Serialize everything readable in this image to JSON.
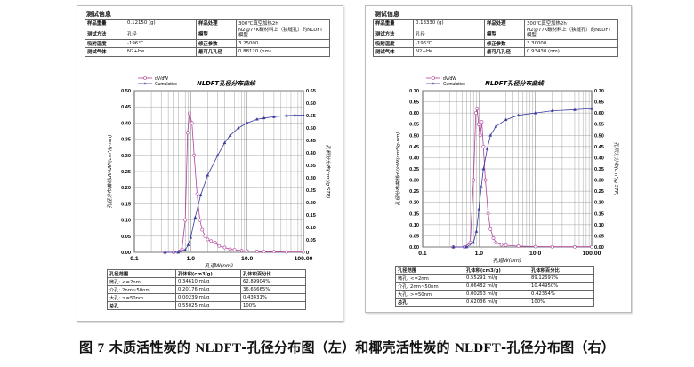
{
  "panels": [
    {
      "header": "测试信息",
      "info": [
        [
          "样品重量",
          "0.12150 (g)",
          "样品处理",
          "300℃真空加热2h"
        ],
        [
          "测试方法",
          "孔径",
          "模型",
          "N2@77K碳材料上（狭缝孔）的NLDFT模型"
        ],
        [
          "吸附温度",
          "-196℃",
          "修正参数",
          "3.25000"
        ],
        [
          "测试气体",
          "N2+He",
          "最可几孔径",
          "0.88120 (nm)"
        ]
      ],
      "pore_table": {
        "headers": [
          "孔径范围",
          "孔体积(cm3/g)",
          "孔体积百分比"
        ],
        "rows": [
          [
            "微孔: <=2nm",
            "0.34610 ml/g",
            "62.89904%"
          ],
          [
            "介孔: 2nm~50nm",
            "0.20176 ml/g",
            "36.66665%"
          ],
          [
            "大孔: >=50nm",
            "0.00239 ml/g",
            "0.43431%"
          ],
          [
            "总孔",
            "0.55025 ml/g",
            "100%"
          ]
        ]
      },
      "chart_data": {
        "type": "line",
        "title": "NLDFT孔径分布曲线",
        "xlabel": "孔道W(nm)",
        "ylabel": "孔径分布曲线dV/dW(cm³/g·nm)",
        "y2label": "孔积分分布(cm³/g STP)",
        "xscale": "log",
        "xlim": [
          0.1,
          100
        ],
        "xticks": [
          "0.1",
          "1.0",
          "10.0",
          "100.00"
        ],
        "ylim": [
          0,
          0.5
        ],
        "yticks": [
          "0.00",
          "0.05",
          "0.10",
          "0.15",
          "0.20",
          "0.25",
          "0.30",
          "0.35",
          "0.40",
          "0.45",
          "0.50"
        ],
        "y2lim": [
          0,
          0.65
        ],
        "y2ticks": [
          "0",
          "0.05",
          "0.10",
          "0.15",
          "0.20",
          "0.25",
          "0.30",
          "0.35",
          "0.40",
          "0.45",
          "0.50",
          "0.55",
          "0.60",
          "0.65"
        ],
        "legend_position": "top-left",
        "series": [
          {
            "name": "dV/dW",
            "axis": "left",
            "color": "#b0409a",
            "marker": "circle",
            "x": [
              0.35,
              0.5,
              0.7,
              0.8,
              0.88,
              0.95,
              1.05,
              1.15,
              1.3,
              1.45,
              1.6,
              1.8,
              2.0,
              2.3,
              2.7,
              3.2,
              4,
              5,
              6,
              8,
              10,
              15,
              20,
              30,
              50,
              100
            ],
            "y": [
              0,
              0,
              0.01,
              0.1,
              0.37,
              0.43,
              0.4,
              0.3,
              0.18,
              0.1,
              0.07,
              0.05,
              0.04,
              0.035,
              0.03,
              0.02,
              0.015,
              0.01,
              0.008,
              0.005,
              0.004,
              0.003,
              0.002,
              0.002,
              0.001,
              0.001
            ]
          },
          {
            "name": "Cumulative",
            "axis": "right",
            "color": "#3a3aa0",
            "marker": "triangle",
            "x": [
              0.35,
              0.6,
              0.8,
              0.9,
              1.0,
              1.2,
              1.5,
              2,
              3,
              4,
              5,
              7,
              10,
              15,
              20,
              30,
              50,
              70,
              100
            ],
            "y": [
              0,
              0,
              0.01,
              0.03,
              0.06,
              0.14,
              0.23,
              0.31,
              0.39,
              0.44,
              0.47,
              0.5,
              0.52,
              0.535,
              0.54,
              0.545,
              0.55,
              0.551,
              0.552
            ]
          }
        ]
      }
    },
    {
      "header": "测试信息",
      "info": [
        [
          "样品重量",
          "0.13330 (g)",
          "样品处理",
          "300℃真空加热2h"
        ],
        [
          "测试方法",
          "孔径",
          "模型",
          "N2@77K碳材料上（狭缝孔）的NLDFT模型"
        ],
        [
          "吸附温度",
          "-196℃",
          "修正参数",
          "3.30000"
        ],
        [
          "测试气体",
          "N2+He",
          "最可几孔径",
          "0.93430 (nm)"
        ]
      ],
      "pore_table": {
        "headers": [
          "孔径范围",
          "孔体积(cm3/g)",
          "孔体积百分比"
        ],
        "rows": [
          [
            "微孔: <=2nm",
            "0.55291 ml/g",
            "89.12697%"
          ],
          [
            "介孔: 2nm~50nm",
            "0.06482 ml/g",
            "10.44950%"
          ],
          [
            "大孔: >=50nm",
            "0.00263 ml/g",
            "0.42354%"
          ],
          [
            "总孔",
            "0.62036 ml/g",
            "100%"
          ]
        ]
      },
      "chart_data": {
        "type": "line",
        "title": "NLDFT孔径分布曲线",
        "xlabel": "孔道W(nm)",
        "ylabel": "孔径分布曲线dV/dW(cm³/g·nm)",
        "y2label": "孔积分分布(cm³/g STP)",
        "xscale": "log",
        "xlim": [
          0.1,
          100
        ],
        "xticks": [
          "0.1",
          "1.0",
          "10.0",
          "100.00"
        ],
        "ylim": [
          0,
          0.7
        ],
        "yticks": [
          "0.00",
          "0.05",
          "0.10",
          "0.15",
          "0.20",
          "0.25",
          "0.30",
          "0.35",
          "0.40",
          "0.45",
          "0.50",
          "0.55",
          "0.60",
          "0.65",
          "0.70"
        ],
        "y2lim": [
          0,
          0.7
        ],
        "y2ticks": [
          "0.00",
          "0.05",
          "0.10",
          "0.15",
          "0.20",
          "0.25",
          "0.30",
          "0.35",
          "0.40",
          "0.45",
          "0.50",
          "0.55",
          "0.60",
          "0.65",
          "0.70"
        ],
        "legend_position": "top-left",
        "series": [
          {
            "name": "dV/dW",
            "axis": "left",
            "color": "#b0409a",
            "marker": "circle",
            "x": [
              0.35,
              0.55,
              0.7,
              0.8,
              0.88,
              0.93,
              0.98,
              1.05,
              1.12,
              1.2,
              1.3,
              1.45,
              1.6,
              1.8,
              2.0,
              2.5,
              3,
              5,
              10,
              20,
              50,
              100
            ],
            "y": [
              0,
              0,
              0.02,
              0.3,
              0.6,
              0.62,
              0.55,
              0.5,
              0.56,
              0.45,
              0.3,
              0.15,
              0.08,
              0.04,
              0.02,
              0.01,
              0.008,
              0.004,
              0.002,
              0.001,
              0.001,
              0.001
            ]
          },
          {
            "name": "Cumulative",
            "axis": "right",
            "color": "#3a3aa0",
            "marker": "triangle",
            "x": [
              0.35,
              0.6,
              0.8,
              0.9,
              1.0,
              1.1,
              1.2,
              1.4,
              1.6,
              2,
              3,
              5,
              10,
              20,
              50,
              100
            ],
            "y": [
              0,
              0,
              0.02,
              0.07,
              0.17,
              0.27,
              0.35,
              0.44,
              0.5,
              0.54,
              0.57,
              0.59,
              0.6,
              0.61,
              0.615,
              0.62
            ]
          }
        ]
      }
    }
  ],
  "caption": {
    "p1": "图",
    "num": "7",
    "p2": " 木质活性炭的 ",
    "m1": "NLDFT",
    "p3": "-孔径分布图（左）和椰壳活性炭的 ",
    "m2": "NLDFT",
    "p4": "-孔径分布图（右）"
  }
}
